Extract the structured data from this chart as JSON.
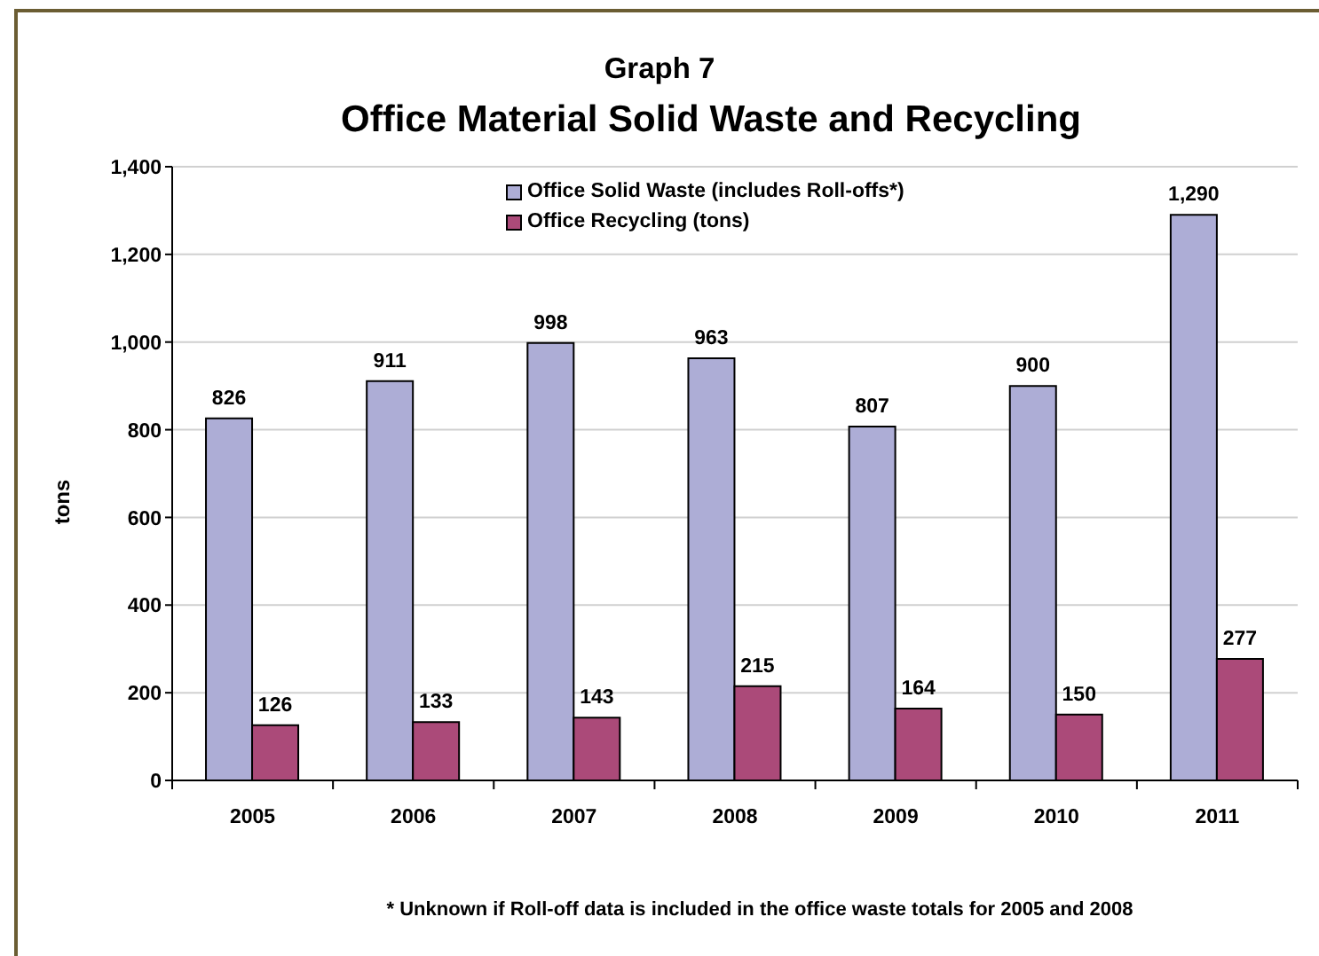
{
  "chart_data": {
    "type": "bar",
    "title": "Graph 7",
    "subtitle": "Office Material Solid Waste and Recycling",
    "ylabel": "tons",
    "annotations": [
      "* Unknown if Roll-off data is included in the office waste totals for 2005 and 2008"
    ],
    "categories": [
      "2005",
      "2006",
      "2007",
      "2008",
      "2009",
      "2010",
      "2011"
    ],
    "series": [
      {
        "name": "Office Solid Waste (includes Roll-offs*)",
        "color": "#adadd6",
        "values": [
          826,
          911,
          998,
          963,
          807,
          900,
          1290
        ],
        "value_labels": [
          "826",
          "911",
          "998",
          "963",
          "807",
          "900",
          "1,290"
        ]
      },
      {
        "name": "Office Recycling (tons)",
        "color": "#ab4a79",
        "values": [
          126,
          133,
          143,
          215,
          164,
          150,
          277
        ],
        "value_labels": [
          "126",
          "133",
          "143",
          "215",
          "164",
          "150",
          "277"
        ]
      }
    ],
    "ylim": [
      0,
      1400
    ],
    "yticks": [
      0,
      200,
      400,
      600,
      800,
      {
        "value": 1000,
        "label": "1,000"
      },
      {
        "value": 1200,
        "label": "1,200"
      },
      {
        "value": 1400,
        "label": "1,400"
      }
    ],
    "grid": "y",
    "legend": "top"
  }
}
